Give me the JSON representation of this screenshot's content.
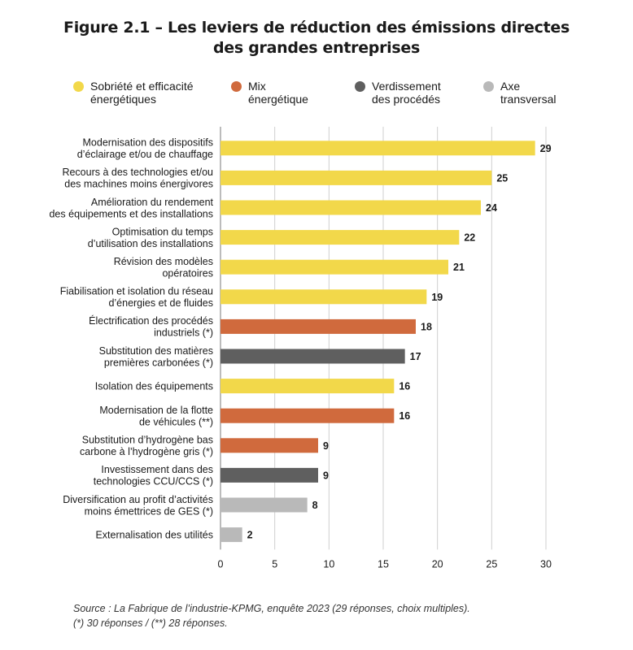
{
  "title_lines": [
    "Figure 2.1 – Les leviers de réduction des émissions directes",
    "des grandes entreprises"
  ],
  "legend": [
    {
      "key": "sobriete",
      "lines": [
        "Sobriété et efficacité",
        "énergétiques"
      ],
      "color": "#f2d84a"
    },
    {
      "key": "mix",
      "lines": [
        "Mix",
        "énergétique"
      ],
      "color": "#d06a3d"
    },
    {
      "key": "verdissement",
      "lines": [
        "Verdissement",
        "des procédés"
      ],
      "color": "#5f5f5f"
    },
    {
      "key": "transversal",
      "lines": [
        "Axe",
        "transversal"
      ],
      "color": "#b9b9b9"
    }
  ],
  "chart_data": {
    "type": "bar",
    "orientation": "horizontal",
    "xlim": [
      0,
      30
    ],
    "xticks": [
      0,
      5,
      10,
      15,
      20,
      25,
      30
    ],
    "grid": true,
    "legend_position": "top",
    "bars": [
      {
        "label": [
          "Modernisation des dispositifs",
          "d’éclairage et/ou de chauffage"
        ],
        "value": 29,
        "group": "sobriete"
      },
      {
        "label": [
          "Recours à des technologies et/ou",
          "des machines moins énergivores"
        ],
        "value": 25,
        "group": "sobriete"
      },
      {
        "label": [
          "Amélioration du rendement",
          "des équipements et des installations"
        ],
        "value": 24,
        "group": "sobriete"
      },
      {
        "label": [
          "Optimisation du temps",
          "d’utilisation des installations"
        ],
        "value": 22,
        "group": "sobriete"
      },
      {
        "label": [
          "Révision des modèles",
          "opératoires"
        ],
        "value": 21,
        "group": "sobriete"
      },
      {
        "label": [
          "Fiabilisation et isolation du réseau",
          "d’énergies et de fluides"
        ],
        "value": 19,
        "group": "sobriete"
      },
      {
        "label": [
          "Électrification des procédés",
          "industriels (*)"
        ],
        "value": 18,
        "group": "mix"
      },
      {
        "label": [
          "Substitution des matières",
          "premières carbonées (*)"
        ],
        "value": 17,
        "group": "verdissement"
      },
      {
        "label": [
          "Isolation des équipements"
        ],
        "value": 16,
        "group": "sobriete"
      },
      {
        "label": [
          "Modernisation de la flotte",
          "de véhicules (**)"
        ],
        "value": 16,
        "group": "mix"
      },
      {
        "label": [
          "Substitution d’hydrogène bas",
          "carbone à l’hydrogène gris (*)"
        ],
        "value": 9,
        "group": "mix"
      },
      {
        "label": [
          "Investissement dans des",
          "technologies CCU/CCS (*)"
        ],
        "value": 9,
        "group": "verdissement"
      },
      {
        "label": [
          "Diversification au profit d’activités",
          "moins émettrices de GES (*)"
        ],
        "value": 8,
        "group": "transversal"
      },
      {
        "label": [
          "Externalisation des utilités"
        ],
        "value": 2,
        "group": "transversal"
      }
    ]
  },
  "source_lines": [
    "Source : La Fabrique de l’industrie-KPMG, enquête 2023 (29 réponses, choix multiples).",
    "(*) 30 réponses / (**) 28 réponses."
  ]
}
